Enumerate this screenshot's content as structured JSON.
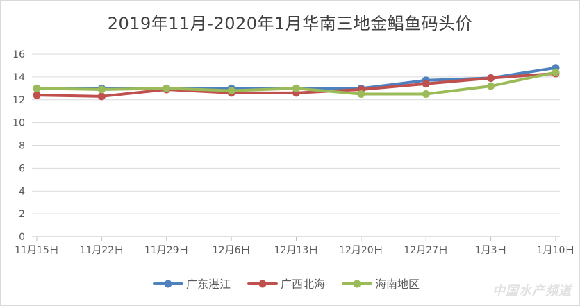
{
  "chart_data": {
    "type": "line",
    "title": "2019年11月-2020年1月华南三地金鲳鱼码头价",
    "categories": [
      "11月15日",
      "11月22日",
      "11月29日",
      "12月6日",
      "12月13日",
      "12月20日",
      "12月27日",
      "1月3日",
      "1月10日"
    ],
    "ylim": [
      0,
      16
    ],
    "yticks": [
      0,
      2,
      4,
      6,
      8,
      10,
      12,
      14,
      16
    ],
    "grid": true,
    "legend_position": "bottom",
    "series": [
      {
        "name": "广东湛江",
        "color": "#4f81bd",
        "values": [
          13.0,
          13.0,
          13.0,
          13.0,
          13.0,
          13.0,
          13.7,
          13.9,
          14.8
        ]
      },
      {
        "name": "广西北海",
        "color": "#c0504d",
        "values": [
          12.4,
          12.3,
          12.9,
          12.6,
          12.6,
          12.9,
          13.4,
          13.9,
          14.3
        ]
      },
      {
        "name": "海南地区",
        "color": "#9bbb59",
        "values": [
          13.0,
          12.9,
          13.0,
          12.8,
          13.0,
          12.5,
          12.5,
          13.2,
          14.4
        ]
      }
    ]
  },
  "watermark": "中国水产频道"
}
